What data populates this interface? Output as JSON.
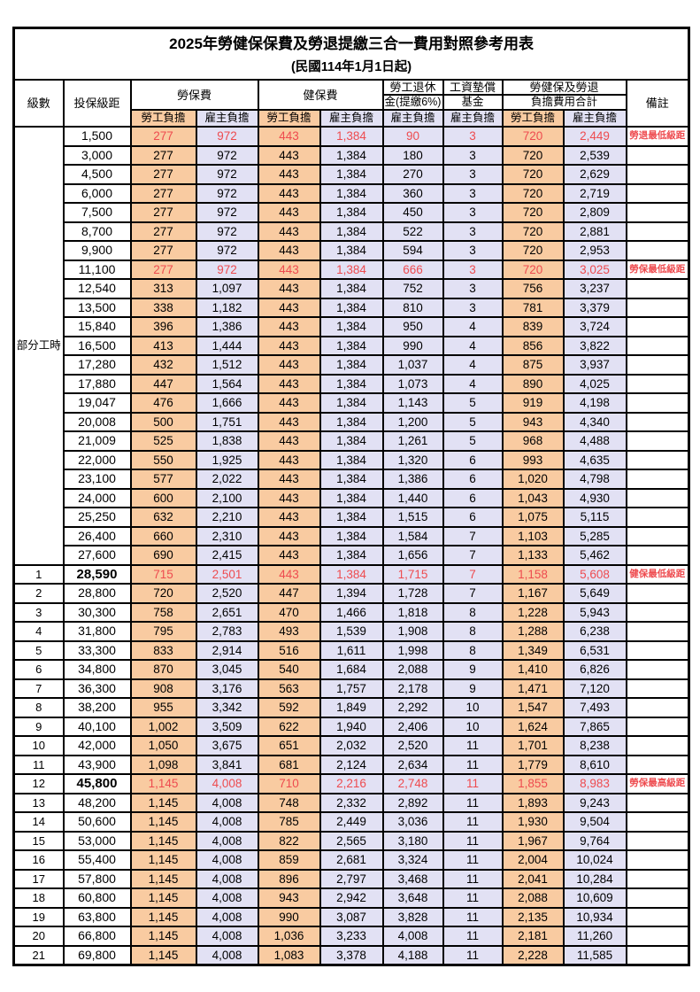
{
  "title": "2025年勞健保保費及勞退提繳三合一費用對照參考用表",
  "subtitle": "(民國114年1月1日起)",
  "columns": {
    "level": "級數",
    "salary": "投保級距",
    "labor_insurance": "勞保費",
    "health_insurance": "健保費",
    "pension_line1": "勞工退休",
    "pension_line2": "金(提繳6%)",
    "wage_fund_line1": "工資墊償",
    "wage_fund_line2": "基金",
    "total_line1": "勞健保及勞退",
    "total_line2": "負擔費用合計",
    "employee_burden": "勞工負擔",
    "employer_burden": "雇主負擔",
    "remarks": "備註"
  },
  "part_time_label": "部分工時",
  "colors": {
    "employee_bg": "#f9cba1",
    "employer_bg": "#e2e1f4",
    "highlight_red": "#ee4b4f",
    "border": "#000000"
  },
  "rows": [
    {
      "level": "",
      "salary": "1,500",
      "values": [
        "277",
        "972",
        "443",
        "1,384",
        "90",
        "3",
        "720",
        "2,449"
      ],
      "note": "勞退最低級距",
      "red": true,
      "bold_salary": false
    },
    {
      "level": "",
      "salary": "3,000",
      "values": [
        "277",
        "972",
        "443",
        "1,384",
        "180",
        "3",
        "720",
        "2,539"
      ],
      "note": "",
      "red": false,
      "bold_salary": false
    },
    {
      "level": "",
      "salary": "4,500",
      "values": [
        "277",
        "972",
        "443",
        "1,384",
        "270",
        "3",
        "720",
        "2,629"
      ],
      "note": "",
      "red": false,
      "bold_salary": false
    },
    {
      "level": "",
      "salary": "6,000",
      "values": [
        "277",
        "972",
        "443",
        "1,384",
        "360",
        "3",
        "720",
        "2,719"
      ],
      "note": "",
      "red": false,
      "bold_salary": false
    },
    {
      "level": "",
      "salary": "7,500",
      "values": [
        "277",
        "972",
        "443",
        "1,384",
        "450",
        "3",
        "720",
        "2,809"
      ],
      "note": "",
      "red": false,
      "bold_salary": false
    },
    {
      "level": "",
      "salary": "8,700",
      "values": [
        "277",
        "972",
        "443",
        "1,384",
        "522",
        "3",
        "720",
        "2,881"
      ],
      "note": "",
      "red": false,
      "bold_salary": false
    },
    {
      "level": "",
      "salary": "9,900",
      "values": [
        "277",
        "972",
        "443",
        "1,384",
        "594",
        "3",
        "720",
        "2,953"
      ],
      "note": "",
      "red": false,
      "bold_salary": false
    },
    {
      "level": "",
      "salary": "11,100",
      "values": [
        "277",
        "972",
        "443",
        "1,384",
        "666",
        "3",
        "720",
        "3,025"
      ],
      "note": "勞保最低級距",
      "red": true,
      "bold_salary": false
    },
    {
      "level": "",
      "salary": "12,540",
      "values": [
        "313",
        "1,097",
        "443",
        "1,384",
        "752",
        "3",
        "756",
        "3,237"
      ],
      "note": "",
      "red": false,
      "bold_salary": false
    },
    {
      "level": "",
      "salary": "13,500",
      "values": [
        "338",
        "1,182",
        "443",
        "1,384",
        "810",
        "3",
        "781",
        "3,379"
      ],
      "note": "",
      "red": false,
      "bold_salary": false
    },
    {
      "level": "",
      "salary": "15,840",
      "values": [
        "396",
        "1,386",
        "443",
        "1,384",
        "950",
        "4",
        "839",
        "3,724"
      ],
      "note": "",
      "red": false,
      "bold_salary": false
    },
    {
      "level": "",
      "salary": "16,500",
      "values": [
        "413",
        "1,444",
        "443",
        "1,384",
        "990",
        "4",
        "856",
        "3,822"
      ],
      "note": "",
      "red": false,
      "bold_salary": false
    },
    {
      "level": "",
      "salary": "17,280",
      "values": [
        "432",
        "1,512",
        "443",
        "1,384",
        "1,037",
        "4",
        "875",
        "3,937"
      ],
      "note": "",
      "red": false,
      "bold_salary": false
    },
    {
      "level": "",
      "salary": "17,880",
      "values": [
        "447",
        "1,564",
        "443",
        "1,384",
        "1,073",
        "4",
        "890",
        "4,025"
      ],
      "note": "",
      "red": false,
      "bold_salary": false
    },
    {
      "level": "",
      "salary": "19,047",
      "values": [
        "476",
        "1,666",
        "443",
        "1,384",
        "1,143",
        "5",
        "919",
        "4,198"
      ],
      "note": "",
      "red": false,
      "bold_salary": false
    },
    {
      "level": "",
      "salary": "20,008",
      "values": [
        "500",
        "1,751",
        "443",
        "1,384",
        "1,200",
        "5",
        "943",
        "4,340"
      ],
      "note": "",
      "red": false,
      "bold_salary": false
    },
    {
      "level": "",
      "salary": "21,009",
      "values": [
        "525",
        "1,838",
        "443",
        "1,384",
        "1,261",
        "5",
        "968",
        "4,488"
      ],
      "note": "",
      "red": false,
      "bold_salary": false
    },
    {
      "level": "",
      "salary": "22,000",
      "values": [
        "550",
        "1,925",
        "443",
        "1,384",
        "1,320",
        "6",
        "993",
        "4,635"
      ],
      "note": "",
      "red": false,
      "bold_salary": false
    },
    {
      "level": "",
      "salary": "23,100",
      "values": [
        "577",
        "2,022",
        "443",
        "1,384",
        "1,386",
        "6",
        "1,020",
        "4,798"
      ],
      "note": "",
      "red": false,
      "bold_salary": false
    },
    {
      "level": "",
      "salary": "24,000",
      "values": [
        "600",
        "2,100",
        "443",
        "1,384",
        "1,440",
        "6",
        "1,043",
        "4,930"
      ],
      "note": "",
      "red": false,
      "bold_salary": false
    },
    {
      "level": "",
      "salary": "25,250",
      "values": [
        "632",
        "2,210",
        "443",
        "1,384",
        "1,515",
        "6",
        "1,075",
        "5,115"
      ],
      "note": "",
      "red": false,
      "bold_salary": false
    },
    {
      "level": "",
      "salary": "26,400",
      "values": [
        "660",
        "2,310",
        "443",
        "1,384",
        "1,584",
        "7",
        "1,103",
        "5,285"
      ],
      "note": "",
      "red": false,
      "bold_salary": false
    },
    {
      "level": "",
      "salary": "27,600",
      "values": [
        "690",
        "2,415",
        "443",
        "1,384",
        "1,656",
        "7",
        "1,133",
        "5,462"
      ],
      "note": "",
      "red": false,
      "bold_salary": false
    },
    {
      "level": "1",
      "salary": "28,590",
      "values": [
        "715",
        "2,501",
        "443",
        "1,384",
        "1,715",
        "7",
        "1,158",
        "5,608"
      ],
      "note": "健保最低級距",
      "red": true,
      "bold_salary": true
    },
    {
      "level": "2",
      "salary": "28,800",
      "values": [
        "720",
        "2,520",
        "447",
        "1,394",
        "1,728",
        "7",
        "1,167",
        "5,649"
      ],
      "note": "",
      "red": false,
      "bold_salary": false
    },
    {
      "level": "3",
      "salary": "30,300",
      "values": [
        "758",
        "2,651",
        "470",
        "1,466",
        "1,818",
        "8",
        "1,228",
        "5,943"
      ],
      "note": "",
      "red": false,
      "bold_salary": false
    },
    {
      "level": "4",
      "salary": "31,800",
      "values": [
        "795",
        "2,783",
        "493",
        "1,539",
        "1,908",
        "8",
        "1,288",
        "6,238"
      ],
      "note": "",
      "red": false,
      "bold_salary": false
    },
    {
      "level": "5",
      "salary": "33,300",
      "values": [
        "833",
        "2,914",
        "516",
        "1,611",
        "1,998",
        "8",
        "1,349",
        "6,531"
      ],
      "note": "",
      "red": false,
      "bold_salary": false
    },
    {
      "level": "6",
      "salary": "34,800",
      "values": [
        "870",
        "3,045",
        "540",
        "1,684",
        "2,088",
        "9",
        "1,410",
        "6,826"
      ],
      "note": "",
      "red": false,
      "bold_salary": false
    },
    {
      "level": "7",
      "salary": "36,300",
      "values": [
        "908",
        "3,176",
        "563",
        "1,757",
        "2,178",
        "9",
        "1,471",
        "7,120"
      ],
      "note": "",
      "red": false,
      "bold_salary": false
    },
    {
      "level": "8",
      "salary": "38,200",
      "values": [
        "955",
        "3,342",
        "592",
        "1,849",
        "2,292",
        "10",
        "1,547",
        "7,493"
      ],
      "note": "",
      "red": false,
      "bold_salary": false
    },
    {
      "level": "9",
      "salary": "40,100",
      "values": [
        "1,002",
        "3,509",
        "622",
        "1,940",
        "2,406",
        "10",
        "1,624",
        "7,865"
      ],
      "note": "",
      "red": false,
      "bold_salary": false
    },
    {
      "level": "10",
      "salary": "42,000",
      "values": [
        "1,050",
        "3,675",
        "651",
        "2,032",
        "2,520",
        "11",
        "1,701",
        "8,238"
      ],
      "note": "",
      "red": false,
      "bold_salary": false
    },
    {
      "level": "11",
      "salary": "43,900",
      "values": [
        "1,098",
        "3,841",
        "681",
        "2,124",
        "2,634",
        "11",
        "1,779",
        "8,610"
      ],
      "note": "",
      "red": false,
      "bold_salary": false
    },
    {
      "level": "12",
      "salary": "45,800",
      "values": [
        "1,145",
        "4,008",
        "710",
        "2,216",
        "2,748",
        "11",
        "1,855",
        "8,983"
      ],
      "note": "勞保最高級距",
      "red": true,
      "bold_salary": true
    },
    {
      "level": "13",
      "salary": "48,200",
      "values": [
        "1,145",
        "4,008",
        "748",
        "2,332",
        "2,892",
        "11",
        "1,893",
        "9,243"
      ],
      "note": "",
      "red": false,
      "bold_salary": false
    },
    {
      "level": "14",
      "salary": "50,600",
      "values": [
        "1,145",
        "4,008",
        "785",
        "2,449",
        "3,036",
        "11",
        "1,930",
        "9,504"
      ],
      "note": "",
      "red": false,
      "bold_salary": false
    },
    {
      "level": "15",
      "salary": "53,000",
      "values": [
        "1,145",
        "4,008",
        "822",
        "2,565",
        "3,180",
        "11",
        "1,967",
        "9,764"
      ],
      "note": "",
      "red": false,
      "bold_salary": false
    },
    {
      "level": "16",
      "salary": "55,400",
      "values": [
        "1,145",
        "4,008",
        "859",
        "2,681",
        "3,324",
        "11",
        "2,004",
        "10,024"
      ],
      "note": "",
      "red": false,
      "bold_salary": false
    },
    {
      "level": "17",
      "salary": "57,800",
      "values": [
        "1,145",
        "4,008",
        "896",
        "2,797",
        "3,468",
        "11",
        "2,041",
        "10,284"
      ],
      "note": "",
      "red": false,
      "bold_salary": false
    },
    {
      "level": "18",
      "salary": "60,800",
      "values": [
        "1,145",
        "4,008",
        "943",
        "2,942",
        "3,648",
        "11",
        "2,088",
        "10,609"
      ],
      "note": "",
      "red": false,
      "bold_salary": false
    },
    {
      "level": "19",
      "salary": "63,800",
      "values": [
        "1,145",
        "4,008",
        "990",
        "3,087",
        "3,828",
        "11",
        "2,135",
        "10,934"
      ],
      "note": "",
      "red": false,
      "bold_salary": false
    },
    {
      "level": "20",
      "salary": "66,800",
      "values": [
        "1,145",
        "4,008",
        "1,036",
        "3,233",
        "4,008",
        "11",
        "2,181",
        "11,260"
      ],
      "note": "",
      "red": false,
      "bold_salary": false
    },
    {
      "level": "21",
      "salary": "69,800",
      "values": [
        "1,145",
        "4,008",
        "1,083",
        "3,378",
        "4,188",
        "11",
        "2,228",
        "11,585"
      ],
      "note": "",
      "red": false,
      "bold_salary": false
    }
  ]
}
